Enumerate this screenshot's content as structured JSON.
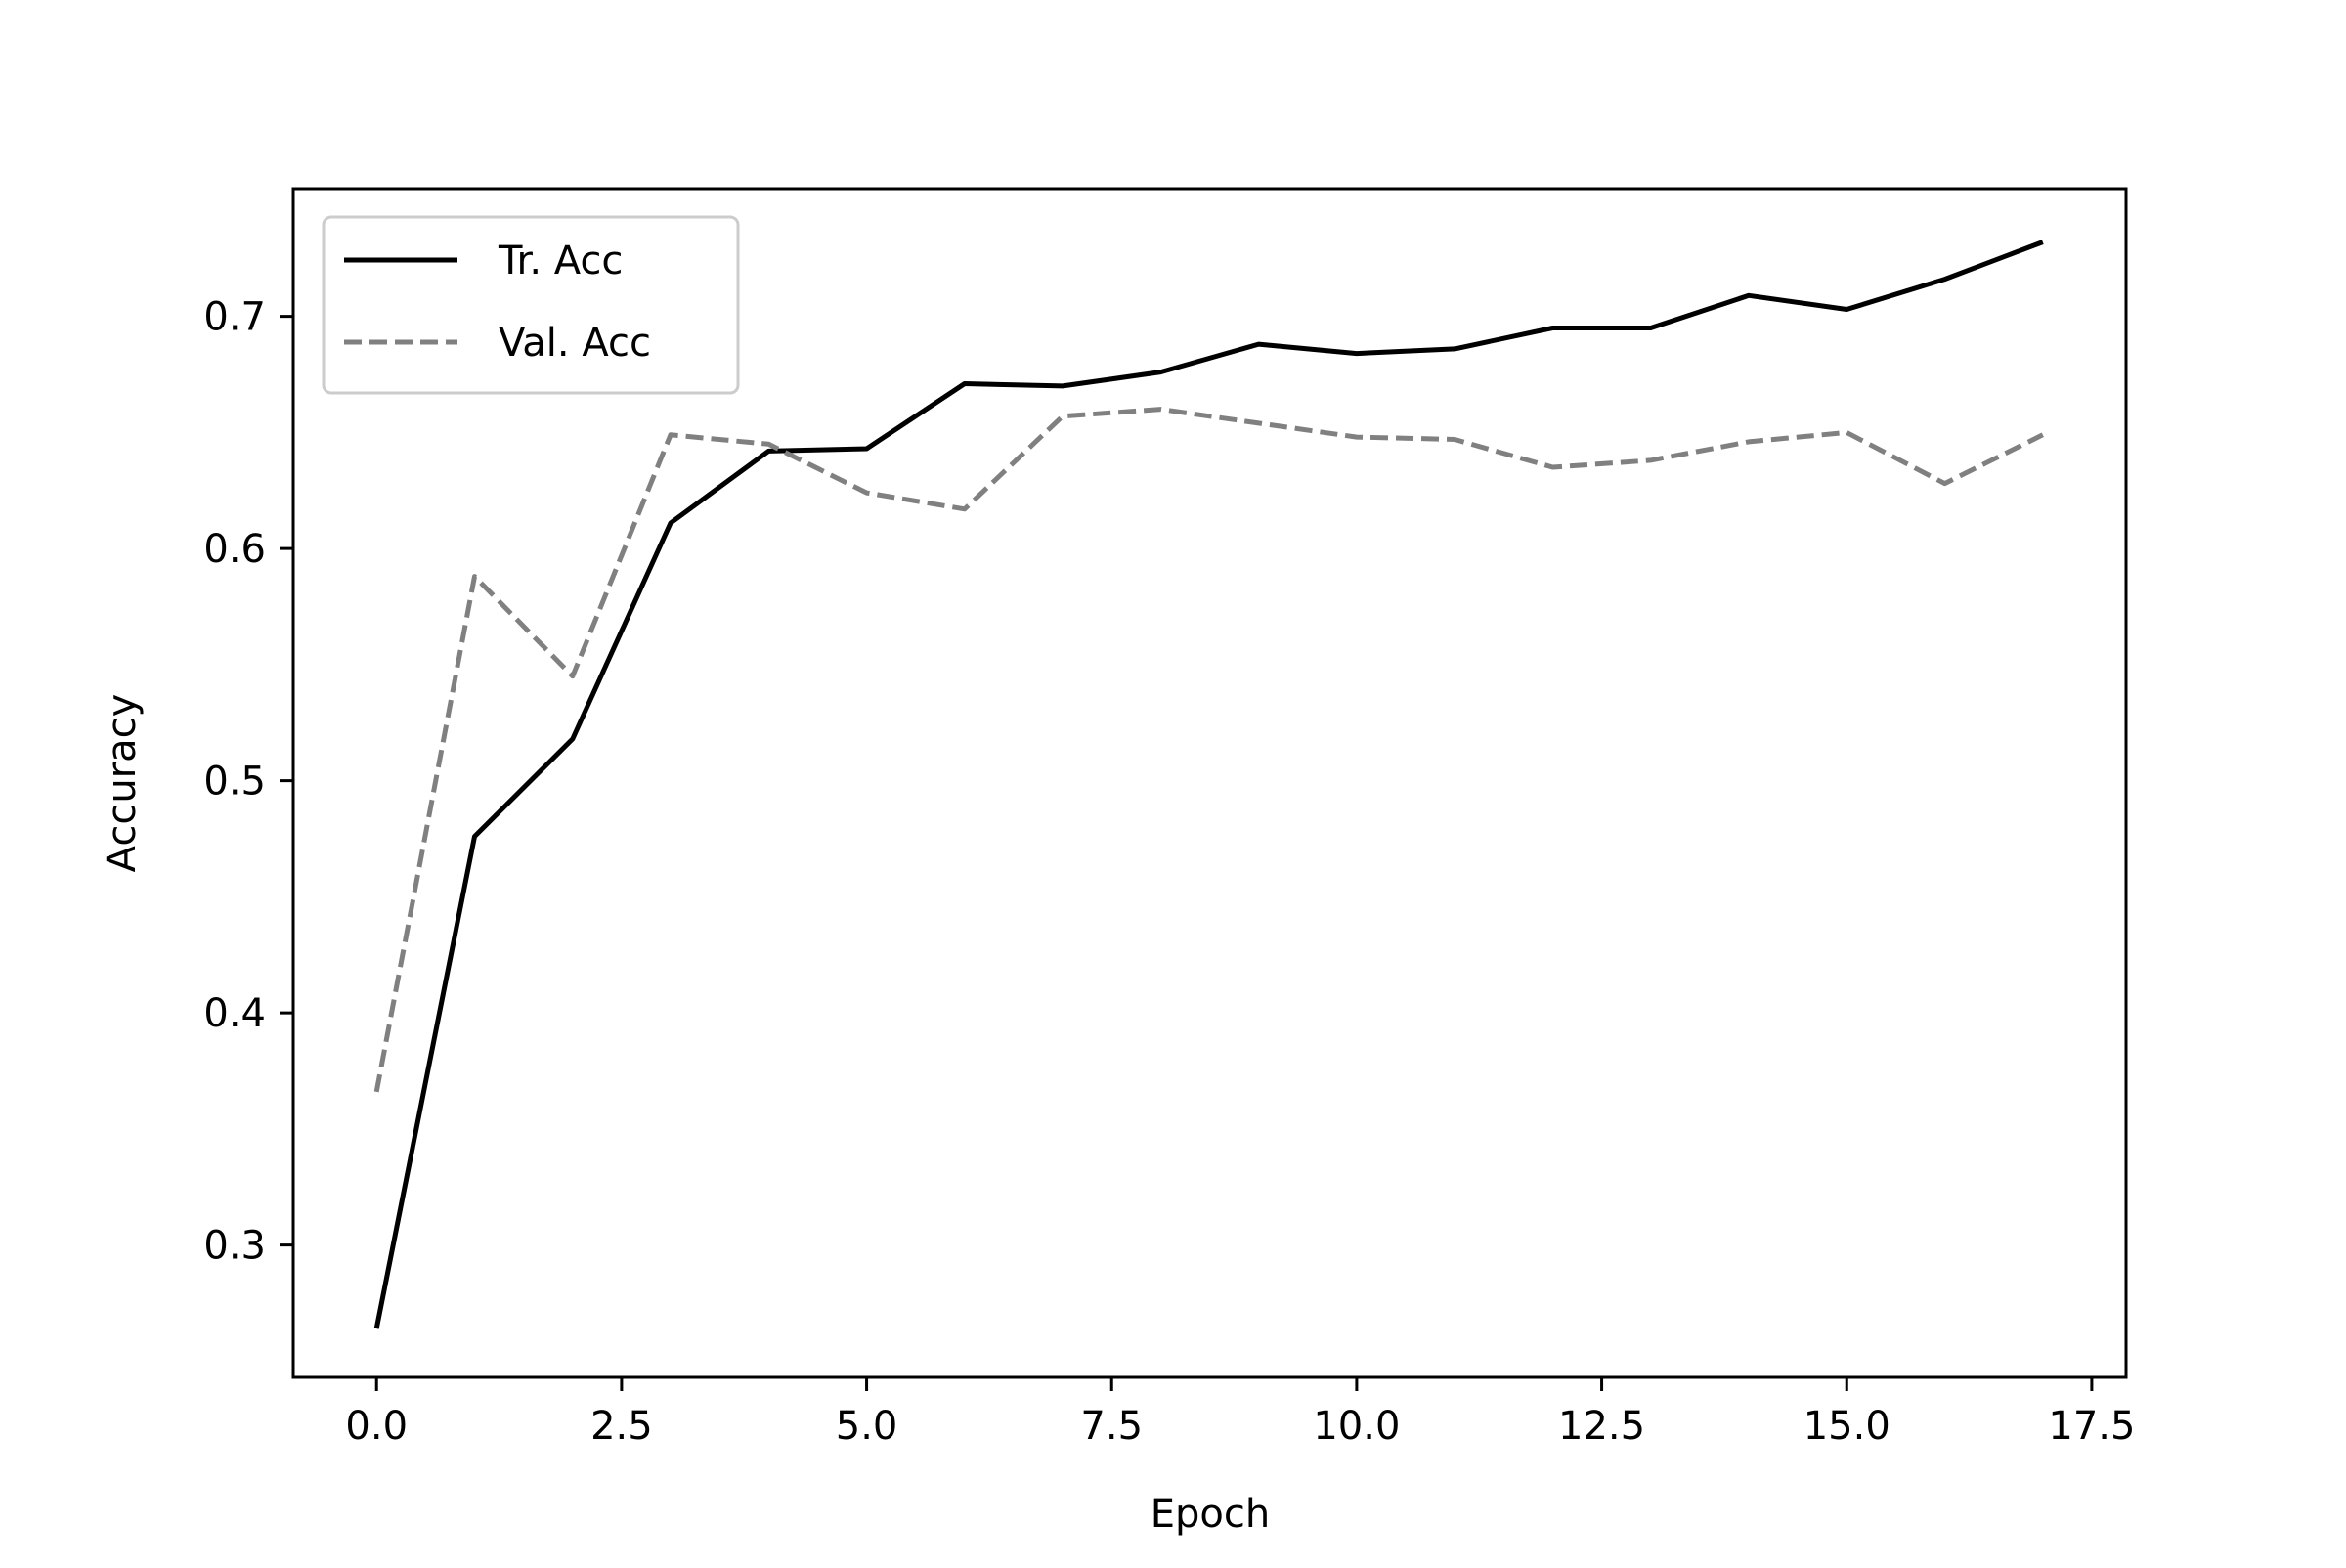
{
  "chart_data": {
    "type": "line",
    "title": "",
    "xlabel": "Epoch",
    "ylabel": "Accuracy",
    "xlim": [
      -0.85,
      17.85
    ],
    "ylim": [
      0.243,
      0.755
    ],
    "xticks": [
      0.0,
      2.5,
      5.0,
      7.5,
      10.0,
      12.5,
      15.0,
      17.5
    ],
    "xtick_labels": [
      "0.0",
      "2.5",
      "5.0",
      "7.5",
      "10.0",
      "12.5",
      "15.0",
      "17.5"
    ],
    "yticks": [
      0.3,
      0.4,
      0.5,
      0.6,
      0.7
    ],
    "ytick_labels": [
      "0.3",
      "0.4",
      "0.5",
      "0.6",
      "0.7"
    ],
    "grid": false,
    "legend": "upper left",
    "x": [
      0,
      1,
      2,
      3,
      4,
      5,
      6,
      7,
      8,
      9,
      10,
      11,
      12,
      13,
      14,
      15,
      16,
      17
    ],
    "series": [
      {
        "name": "Tr. Acc",
        "color": "#000000",
        "style": "solid",
        "values": [
          0.264,
          0.476,
          0.518,
          0.611,
          0.642,
          0.643,
          0.671,
          0.67,
          0.676,
          0.688,
          0.684,
          0.686,
          0.695,
          0.695,
          0.709,
          0.703,
          0.716,
          0.732
        ]
      },
      {
        "name": "Val. Acc",
        "color": "#808080",
        "style": "dashed",
        "values": [
          0.366,
          0.588,
          0.545,
          0.649,
          0.645,
          0.624,
          0.617,
          0.657,
          0.66,
          0.654,
          0.648,
          0.647,
          0.635,
          0.638,
          0.646,
          0.65,
          0.628,
          0.649
        ]
      }
    ]
  }
}
